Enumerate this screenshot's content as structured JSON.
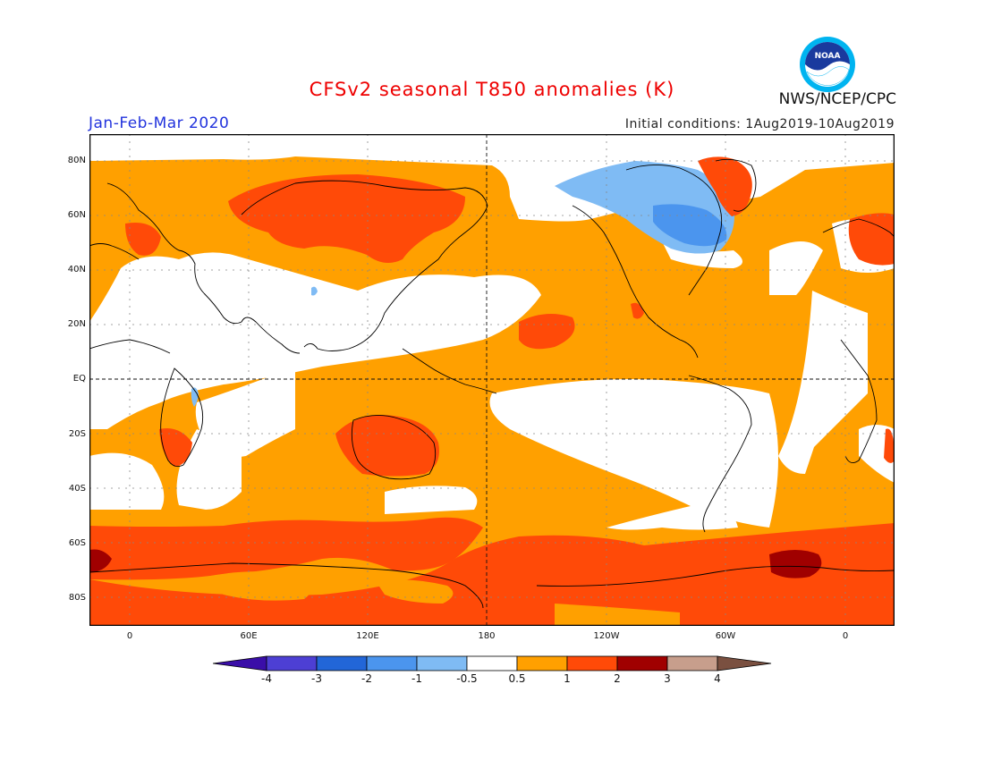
{
  "title": "CFSv2 seasonal T850 anomalies (K)",
  "period": "Jan-Feb-Mar 2020",
  "initial_conditions": "Initial conditions: 1Aug2019-10Aug2019",
  "agency": "NWS/NCEP/CPC",
  "logo_text": "NOAA",
  "lat_labels": [
    "80N",
    "60N",
    "40N",
    "20N",
    "EQ",
    "20S",
    "40S",
    "60S",
    "80S"
  ],
  "lon_labels": [
    "0",
    "60E",
    "120E",
    "180",
    "120W",
    "60W",
    "0"
  ],
  "colorbar": {
    "labels": [
      "-4",
      "-3",
      "-2",
      "-1",
      "-0.5",
      "0.5",
      "1",
      "2",
      "3",
      "4"
    ],
    "colors": [
      "#3a0ea8",
      "#4d3fd4",
      "#2266d8",
      "#4b95ee",
      "#7fbbf4",
      "#ffffff",
      "#ffa000",
      "#ff4a08",
      "#a00000",
      "#c79e8c",
      "#7a5040"
    ]
  },
  "map_colors": {
    "warm_light": "#ffa000",
    "warm_mid": "#ff4a08",
    "warm_dark": "#a00000",
    "cool_light": "#7fbbf4",
    "cool_mid": "#4b95ee",
    "neutral": "#ffffff"
  }
}
